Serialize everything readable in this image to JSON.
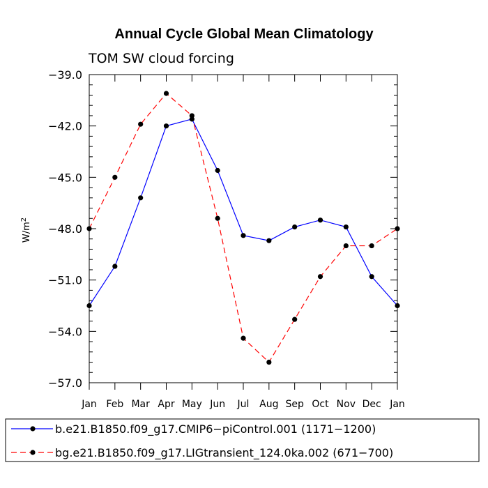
{
  "chart_data": {
    "type": "line",
    "title": "Annual Cycle Global Mean Climatology",
    "subtitle": "TOM SW cloud forcing",
    "xlabel": "",
    "ylabel": "W/m",
    "ylabel_sup": "2",
    "ylim": [
      -57.0,
      -39.0
    ],
    "y_ticks": [
      -39.0,
      -42.0,
      -45.0,
      -48.0,
      -51.0,
      -54.0,
      -57.0
    ],
    "y_tick_labels": [
      "−39.0",
      "−42.0",
      "−45.0",
      "−48.0",
      "−51.0",
      "−54.0",
      "−57.0"
    ],
    "categories": [
      "Jan",
      "Feb",
      "Mar",
      "Apr",
      "May",
      "Jun",
      "Jul",
      "Aug",
      "Sep",
      "Oct",
      "Nov",
      "Dec",
      "Jan"
    ],
    "legend_position": "bottom",
    "series": [
      {
        "name": "b.e21.B1850.f09_g17.CMIP6−piControl.001 (1171−1200)",
        "color": "#0000ff",
        "dash": "solid",
        "values": [
          -52.5,
          -50.2,
          -46.2,
          -42.0,
          -41.6,
          -44.6,
          -48.4,
          -48.7,
          -47.9,
          -47.5,
          -47.9,
          -50.8,
          -52.5
        ]
      },
      {
        "name": "bg.e21.B1850.f09_g17.LIGtransient_124.0ka.002 (671−700)",
        "color": "#ff0000",
        "dash": "dashed",
        "values": [
          -48.0,
          -45.0,
          -41.9,
          -40.1,
          -41.4,
          -47.4,
          -54.4,
          -55.8,
          -53.3,
          -50.8,
          -49.0,
          -49.0,
          -48.0
        ]
      }
    ]
  }
}
